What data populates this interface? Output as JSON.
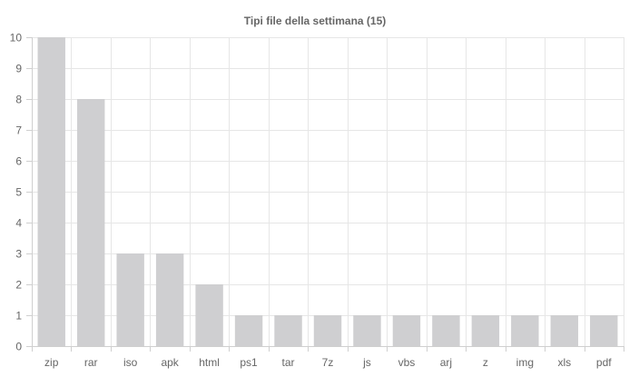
{
  "chart_data": {
    "type": "bar",
    "title": "Tipi file della settimana (15)",
    "xlabel": "",
    "ylabel": "",
    "categories": [
      "zip",
      "rar",
      "iso",
      "apk",
      "html",
      "ps1",
      "tar",
      "7z",
      "js",
      "vbs",
      "arj",
      "z",
      "img",
      "xls",
      "pdf"
    ],
    "series": [
      {
        "values": [
          10,
          8,
          3,
          3,
          2,
          1,
          1,
          1,
          1,
          1,
          1,
          1,
          1,
          1,
          1
        ],
        "color": "#cfcfd1"
      }
    ],
    "ylim": [
      0,
      10
    ],
    "yticks": [
      0,
      1,
      2,
      3,
      4,
      5,
      6,
      7,
      8,
      9,
      10
    ],
    "grid": true,
    "legend": "none"
  }
}
